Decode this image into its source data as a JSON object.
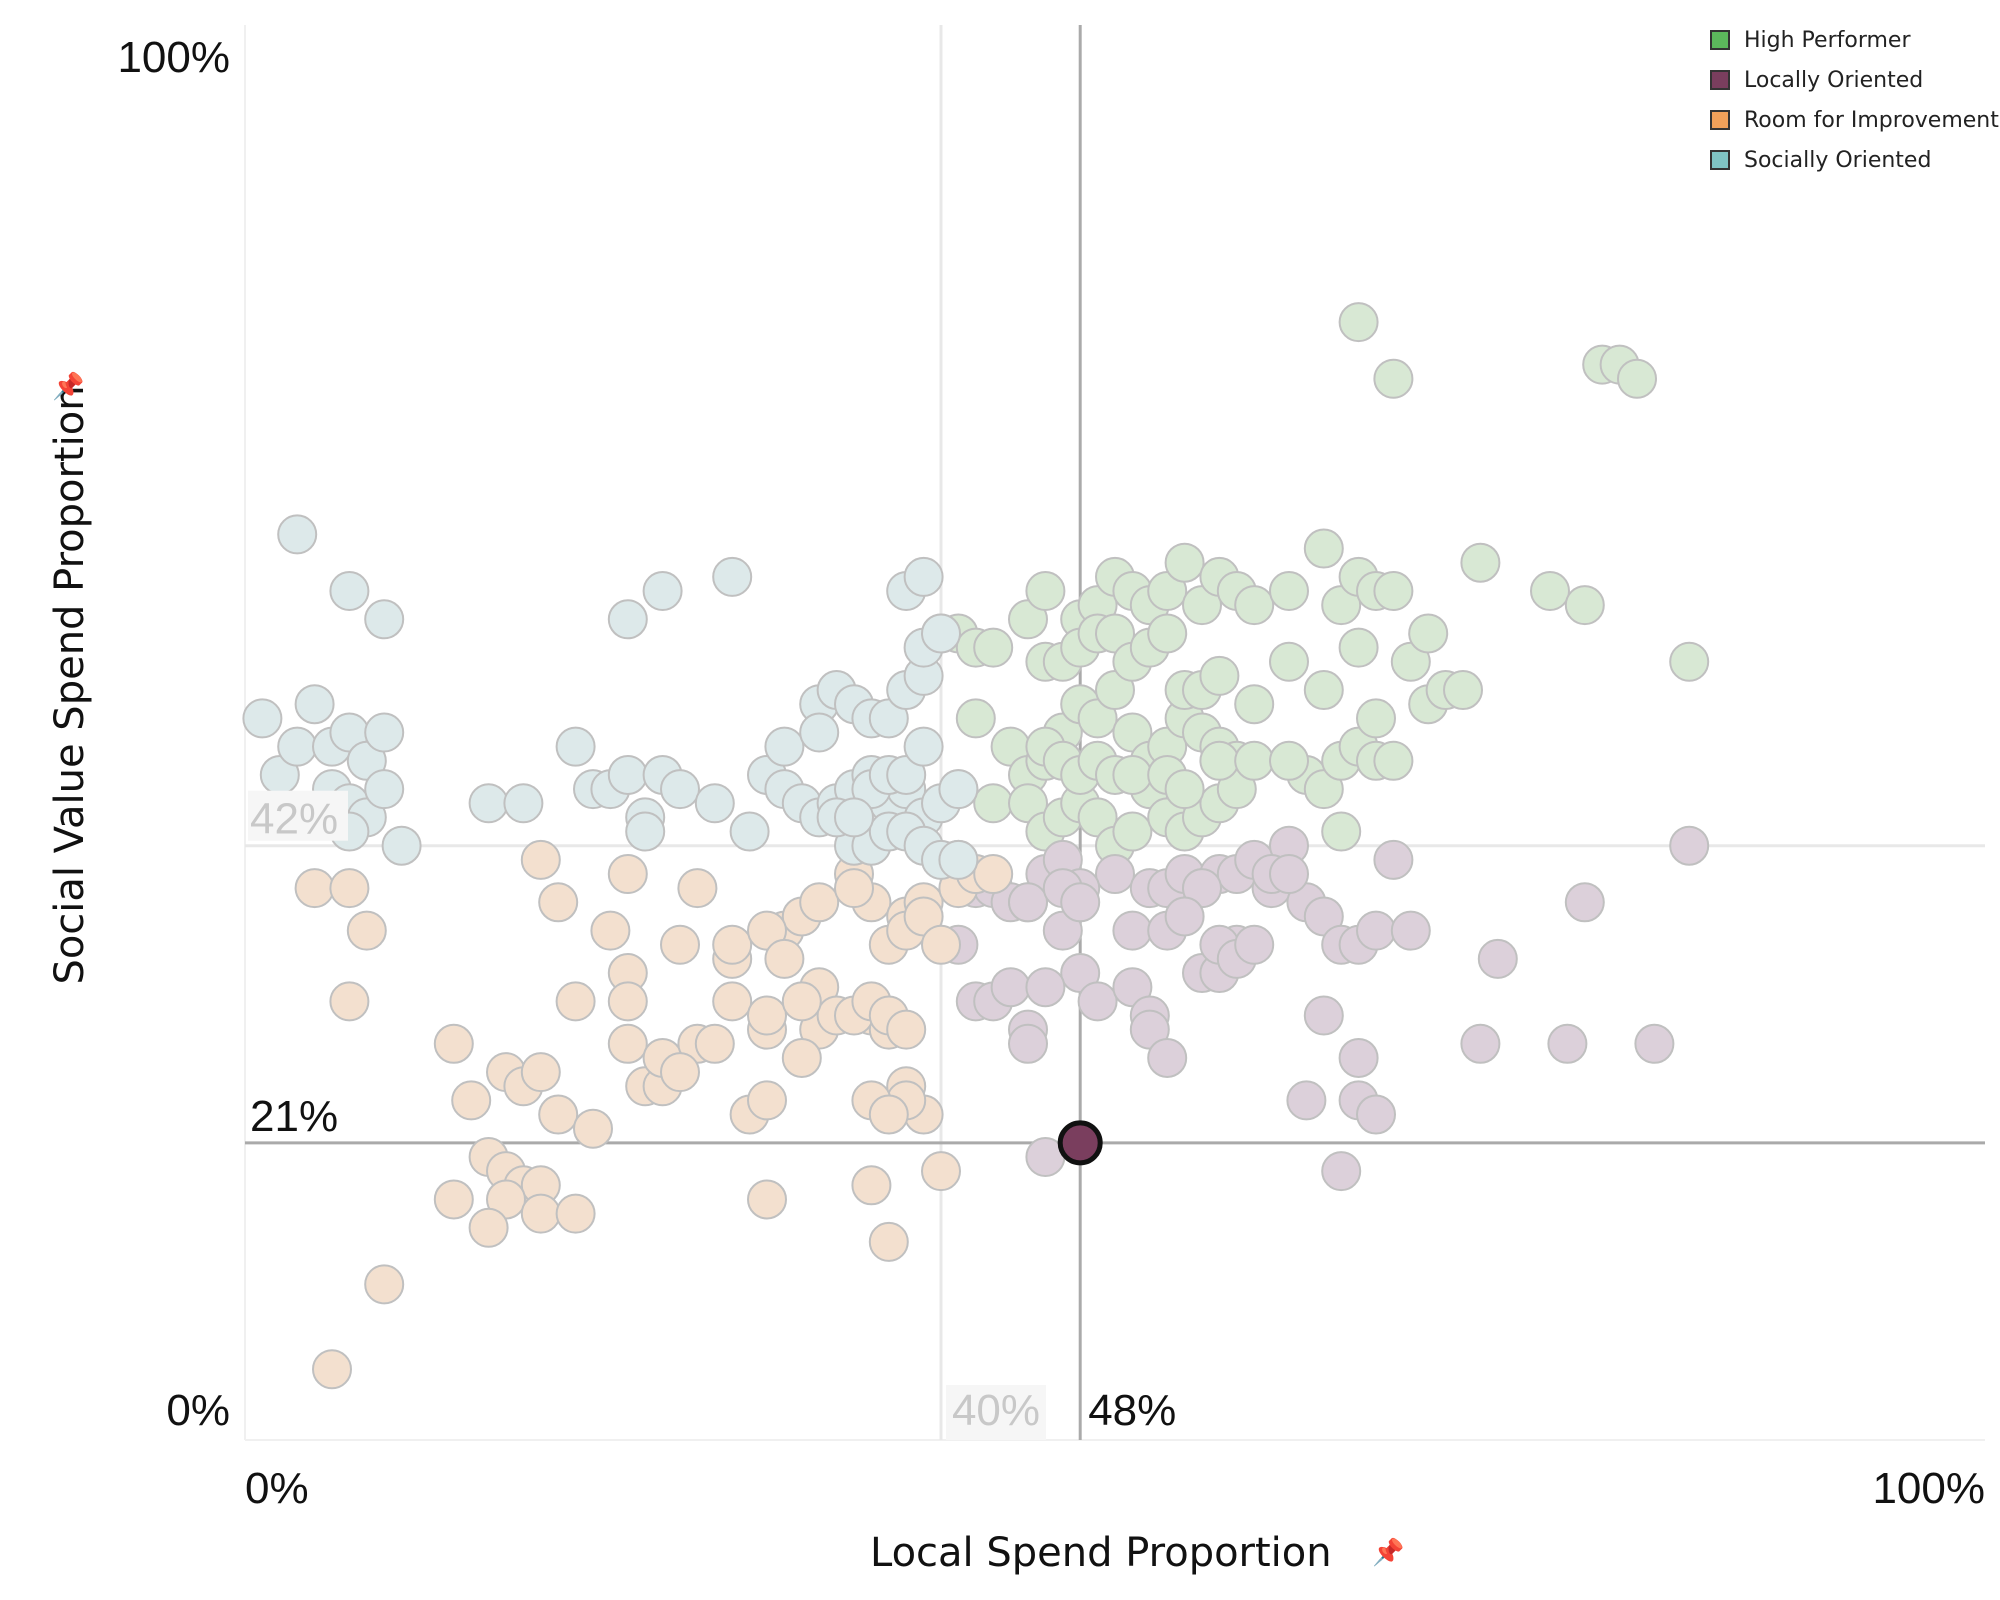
{
  "chart_data": {
    "type": "scatter",
    "xlabel": "Local Spend Proportion",
    "ylabel": "Social Value Spend Proportion",
    "xlim": [
      0,
      100
    ],
    "ylim": [
      0,
      100
    ],
    "x_tick_labels": [
      "0%",
      "100%"
    ],
    "y_tick_labels": [
      "0%",
      "100%"
    ],
    "legend": {
      "placement": "top-right",
      "entries": [
        {
          "name": "High Performer",
          "color": "#5cb85c"
        },
        {
          "name": "Locally Oriented",
          "color": "#7a3e5e"
        },
        {
          "name": "Room for Improvement",
          "color": "#f0a05a"
        },
        {
          "name": "Socially Oriented",
          "color": "#7fc4c4"
        }
      ]
    },
    "reference_lines": {
      "average_x": 40,
      "average_x_label": "40%",
      "average_y": 42,
      "average_y_label": "42%",
      "selected_x": 48,
      "selected_x_label": "48%",
      "selected_y": 21,
      "selected_y_label": "21%"
    },
    "highlight": {
      "x": 48,
      "y": 21,
      "category": "Locally Oriented"
    },
    "series": [
      {
        "name": "High Performer",
        "points": [
          [
            40,
            57
          ],
          [
            41,
            57
          ],
          [
            42,
            56
          ],
          [
            43,
            56
          ],
          [
            45,
            58
          ],
          [
            46,
            60
          ],
          [
            48,
            58
          ],
          [
            49,
            59
          ],
          [
            50,
            61
          ],
          [
            51,
            60
          ],
          [
            52,
            59
          ],
          [
            53,
            60
          ],
          [
            54,
            62
          ],
          [
            55,
            59
          ],
          [
            56,
            61
          ],
          [
            57,
            60
          ],
          [
            58,
            59
          ],
          [
            60,
            60
          ],
          [
            62,
            63
          ],
          [
            63,
            59
          ],
          [
            64,
            61
          ],
          [
            65,
            60
          ],
          [
            66,
            60
          ],
          [
            67,
            55
          ],
          [
            68,
            52
          ],
          [
            69,
            53
          ],
          [
            70,
            53
          ],
          [
            42,
            51
          ],
          [
            44,
            49
          ],
          [
            45,
            47
          ],
          [
            46,
            48
          ],
          [
            47,
            50
          ],
          [
            48,
            52
          ],
          [
            49,
            51
          ],
          [
            50,
            53
          ],
          [
            51,
            50
          ],
          [
            52,
            48
          ],
          [
            53,
            49
          ],
          [
            54,
            51
          ],
          [
            55,
            50
          ],
          [
            56,
            49
          ],
          [
            57,
            48
          ],
          [
            58,
            52
          ],
          [
            60,
            55
          ],
          [
            61,
            47
          ],
          [
            62,
            46
          ],
          [
            63,
            48
          ],
          [
            64,
            49
          ],
          [
            65,
            51
          ],
          [
            41,
            46
          ],
          [
            43,
            45
          ],
          [
            45,
            45
          ],
          [
            46,
            43
          ],
          [
            47,
            44
          ],
          [
            48,
            45
          ],
          [
            49,
            44
          ],
          [
            50,
            42
          ],
          [
            51,
            43
          ],
          [
            52,
            46
          ],
          [
            53,
            44
          ],
          [
            54,
            43
          ],
          [
            55,
            44
          ],
          [
            56,
            45
          ],
          [
            57,
            46
          ],
          [
            46,
            55
          ],
          [
            47,
            55
          ],
          [
            48,
            56
          ],
          [
            49,
            57
          ],
          [
            50,
            57
          ],
          [
            51,
            55
          ],
          [
            52,
            56
          ],
          [
            53,
            57
          ],
          [
            54,
            53
          ],
          [
            55,
            53
          ],
          [
            56,
            54
          ],
          [
            46,
            49
          ],
          [
            47,
            48
          ],
          [
            48,
            47
          ],
          [
            49,
            48
          ],
          [
            50,
            47
          ],
          [
            51,
            47
          ],
          [
            53,
            47
          ],
          [
            54,
            46
          ],
          [
            56,
            48
          ],
          [
            58,
            48
          ],
          [
            60,
            48
          ],
          [
            63,
            43
          ],
          [
            68,
            57
          ],
          [
            78,
            76
          ],
          [
            79,
            76
          ],
          [
            80,
            75
          ],
          [
            64,
            79
          ],
          [
            64,
            56
          ],
          [
            66,
            75
          ],
          [
            65,
            48
          ],
          [
            66,
            48
          ],
          [
            62,
            53
          ],
          [
            71,
            62
          ],
          [
            75,
            60
          ],
          [
            77,
            59
          ],
          [
            83,
            55
          ]
        ]
      },
      {
        "name": "Locally Oriented",
        "points": [
          [
            48,
            21
          ],
          [
            46,
            20
          ],
          [
            50,
            40
          ],
          [
            41,
            41
          ],
          [
            42,
            39
          ],
          [
            43,
            39
          ],
          [
            44,
            38
          ],
          [
            45,
            38
          ],
          [
            46,
            40
          ],
          [
            47,
            41
          ],
          [
            48,
            39
          ],
          [
            52,
            39
          ],
          [
            53,
            39
          ],
          [
            54,
            40
          ],
          [
            55,
            39
          ],
          [
            56,
            40
          ],
          [
            57,
            40
          ],
          [
            58,
            41
          ],
          [
            59,
            39
          ],
          [
            60,
            42
          ],
          [
            61,
            38
          ],
          [
            62,
            37
          ],
          [
            63,
            35
          ],
          [
            64,
            35
          ],
          [
            42,
            31
          ],
          [
            43,
            31
          ],
          [
            44,
            32
          ],
          [
            45,
            29
          ],
          [
            45,
            28
          ],
          [
            48,
            33
          ],
          [
            49,
            31
          ],
          [
            51,
            32
          ],
          [
            52,
            30
          ],
          [
            55,
            33
          ],
          [
            56,
            33
          ],
          [
            57,
            35
          ],
          [
            46,
            32
          ],
          [
            47,
            36
          ],
          [
            41,
            35
          ],
          [
            45,
            38
          ],
          [
            51,
            36
          ],
          [
            52,
            29
          ],
          [
            53,
            27
          ],
          [
            56,
            35
          ],
          [
            57,
            34
          ],
          [
            58,
            35
          ],
          [
            59,
            40
          ],
          [
            60,
            40
          ],
          [
            62,
            30
          ],
          [
            64,
            27
          ],
          [
            66,
            41
          ],
          [
            71,
            28
          ],
          [
            72,
            34
          ],
          [
            76,
            28
          ],
          [
            77,
            38
          ],
          [
            81,
            28
          ],
          [
            83,
            42
          ],
          [
            63,
            19
          ],
          [
            61,
            24
          ],
          [
            64,
            24
          ],
          [
            65,
            23
          ],
          [
            65,
            36
          ],
          [
            67,
            36
          ],
          [
            55,
            39
          ],
          [
            47,
            39
          ],
          [
            48,
            38
          ],
          [
            53,
            36
          ],
          [
            54,
            37
          ]
        ]
      },
      {
        "name": "Room for Improvement",
        "points": [
          [
            4,
            39
          ],
          [
            6,
            39
          ],
          [
            7,
            36
          ],
          [
            6,
            31
          ],
          [
            12,
            28
          ],
          [
            13,
            24
          ],
          [
            15,
            26
          ],
          [
            16,
            25
          ],
          [
            17,
            26
          ],
          [
            18,
            23
          ],
          [
            14,
            20
          ],
          [
            15,
            19
          ],
          [
            16,
            18
          ],
          [
            17,
            18
          ],
          [
            12,
            17
          ],
          [
            15,
            17
          ],
          [
            14,
            15
          ],
          [
            17,
            16
          ],
          [
            19,
            16
          ],
          [
            8,
            11
          ],
          [
            5,
            5
          ],
          [
            19,
            31
          ],
          [
            21,
            36
          ],
          [
            22,
            33
          ],
          [
            22,
            31
          ],
          [
            22,
            28
          ],
          [
            23,
            25
          ],
          [
            24,
            25
          ],
          [
            24,
            27
          ],
          [
            25,
            35
          ],
          [
            26,
            28
          ],
          [
            26,
            39
          ],
          [
            27,
            28
          ],
          [
            28,
            31
          ],
          [
            28,
            34
          ],
          [
            28,
            35
          ],
          [
            29,
            23
          ],
          [
            30,
            29
          ],
          [
            30,
            30
          ],
          [
            31,
            36
          ],
          [
            32,
            37
          ],
          [
            33,
            29
          ],
          [
            33,
            32
          ],
          [
            34,
            30
          ],
          [
            30,
            36
          ],
          [
            31,
            34
          ],
          [
            32,
            31
          ],
          [
            32,
            27
          ],
          [
            30,
            24
          ],
          [
            30,
            17
          ],
          [
            35,
            40
          ],
          [
            36,
            38
          ],
          [
            37,
            35
          ],
          [
            36,
            30
          ],
          [
            37,
            29
          ],
          [
            38,
            37
          ],
          [
            38,
            36
          ],
          [
            38,
            25
          ],
          [
            35,
            30
          ],
          [
            36,
            31
          ],
          [
            37,
            30
          ],
          [
            39,
            38
          ],
          [
            39,
            37
          ],
          [
            40,
            35
          ],
          [
            41,
            39
          ],
          [
            42,
            40
          ],
          [
            43,
            40
          ],
          [
            40,
            19
          ],
          [
            39,
            23
          ],
          [
            38,
            24
          ],
          [
            36,
            24
          ],
          [
            37,
            14
          ],
          [
            36,
            18
          ],
          [
            20,
            22
          ],
          [
            22,
            40
          ],
          [
            17,
            41
          ],
          [
            18,
            38
          ],
          [
            25,
            26
          ],
          [
            33,
            38
          ],
          [
            35,
            39
          ],
          [
            37,
            23
          ],
          [
            38,
            29
          ]
        ]
      },
      {
        "name": "Socially Oriented",
        "points": [
          [
            1,
            51
          ],
          [
            2,
            47
          ],
          [
            3,
            49
          ],
          [
            4,
            52
          ],
          [
            5,
            49
          ],
          [
            6,
            50
          ],
          [
            7,
            48
          ],
          [
            8,
            50
          ],
          [
            5,
            46
          ],
          [
            6,
            45
          ],
          [
            7,
            44
          ],
          [
            8,
            46
          ],
          [
            3,
            64
          ],
          [
            6,
            60
          ],
          [
            8,
            58
          ],
          [
            4,
            44
          ],
          [
            6,
            43
          ],
          [
            9,
            42
          ],
          [
            14,
            45
          ],
          [
            16,
            45
          ],
          [
            19,
            49
          ],
          [
            20,
            46
          ],
          [
            21,
            46
          ],
          [
            22,
            47
          ],
          [
            23,
            44
          ],
          [
            24,
            47
          ],
          [
            25,
            46
          ],
          [
            22,
            58
          ],
          [
            24,
            60
          ],
          [
            28,
            61
          ],
          [
            29,
            43
          ],
          [
            30,
            47
          ],
          [
            31,
            46
          ],
          [
            32,
            45
          ],
          [
            33,
            44
          ],
          [
            34,
            45
          ],
          [
            35,
            46
          ],
          [
            36,
            47
          ],
          [
            37,
            45
          ],
          [
            38,
            46
          ],
          [
            39,
            44
          ],
          [
            40,
            45
          ],
          [
            41,
            46
          ],
          [
            35,
            42
          ],
          [
            36,
            42
          ],
          [
            37,
            43
          ],
          [
            38,
            43
          ],
          [
            39,
            42
          ],
          [
            40,
            41
          ],
          [
            33,
            52
          ],
          [
            34,
            53
          ],
          [
            35,
            52
          ],
          [
            36,
            51
          ],
          [
            37,
            51
          ],
          [
            38,
            53
          ],
          [
            39,
            54
          ],
          [
            39,
            56
          ],
          [
            38,
            60
          ],
          [
            39,
            61
          ],
          [
            40,
            57
          ],
          [
            36,
            46
          ],
          [
            37,
            47
          ],
          [
            38,
            47
          ],
          [
            41,
            41
          ],
          [
            27,
            45
          ],
          [
            23,
            43
          ],
          [
            39,
            49
          ],
          [
            31,
            49
          ],
          [
            33,
            50
          ],
          [
            34,
            44
          ],
          [
            35,
            44
          ]
        ]
      }
    ]
  }
}
